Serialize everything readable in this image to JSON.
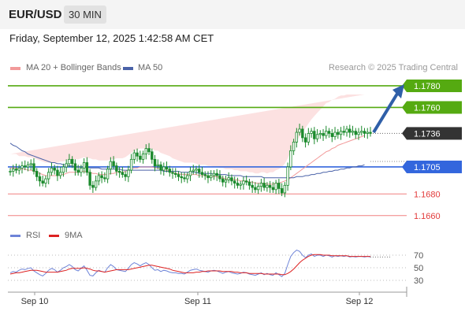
{
  "header": {
    "symbol": "EUR/USD",
    "timeframe": "30 MIN"
  },
  "timestamp": "Friday, September 12, 2025 1:42:58 AM CET",
  "legend": {
    "bollinger": "MA 20 + Bollinger Bands",
    "ma50": "MA 50",
    "credit": "Research © 2025 Trading Central"
  },
  "indicator_legend": {
    "rsi": "RSI",
    "ma9": "9MA"
  },
  "colors": {
    "bollinger_band": "#fbdcdc",
    "ma20": "#f29a9a",
    "ma50": "#4a62a8",
    "resistance": "#55aa11",
    "pivot": "#3366dd",
    "support": "#f08080",
    "arrow": "#2f5fa8",
    "last_price": "#333333",
    "candle": "#1b8a2c",
    "rsi": "#6e84d8",
    "rsi_ma": "#dd2222"
  },
  "chart_data": [
    {
      "type": "candlestick",
      "title": "EUR/USD 30 MIN",
      "x_ticks": [
        "Sep 10",
        "Sep 11",
        "Sep 12"
      ],
      "ylim": [
        1.1654,
        1.1788
      ],
      "last_price": 1.1736,
      "levels": [
        {
          "value": 1.178,
          "label": "1.1780",
          "kind": "resistance"
        },
        {
          "value": 1.176,
          "label": "1.1760",
          "kind": "resistance"
        },
        {
          "value": 1.1705,
          "label": "1.1705",
          "kind": "pivot"
        },
        {
          "value": 1.168,
          "label": "1.1680",
          "kind": "support"
        },
        {
          "value": 1.166,
          "label": "1.1660",
          "kind": "support"
        }
      ],
      "close": [
        1.1701,
        1.1703,
        1.1702,
        1.1704,
        1.1706,
        1.1705,
        1.1707,
        1.1708,
        1.1701,
        1.1696,
        1.1692,
        1.169,
        1.1694,
        1.17,
        1.1704,
        1.1702,
        1.1697,
        1.17,
        1.1705,
        1.1708,
        1.1712,
        1.1708,
        1.1702,
        1.17,
        1.1704,
        1.1709,
        1.17,
        1.1688,
        1.1686,
        1.1692,
        1.1697,
        1.1695,
        1.1694,
        1.1703,
        1.171,
        1.1706,
        1.1701,
        1.17,
        1.1698,
        1.1696,
        1.1702,
        1.1712,
        1.1718,
        1.1715,
        1.1712,
        1.1717,
        1.1722,
        1.1719,
        1.1712,
        1.1706,
        1.1707,
        1.1702,
        1.1705,
        1.1703,
        1.17,
        1.1699,
        1.1698,
        1.1696,
        1.1695,
        1.1694,
        1.1697,
        1.1701,
        1.1702,
        1.1703,
        1.17,
        1.1698,
        1.1697,
        1.1695,
        1.1697,
        1.1699,
        1.1697,
        1.1694,
        1.1691,
        1.1693,
        1.1695,
        1.1692,
        1.169,
        1.1688,
        1.1689,
        1.1692,
        1.1691,
        1.1688,
        1.1686,
        1.1684,
        1.1687,
        1.169,
        1.1686,
        1.1688,
        1.1686,
        1.1684,
        1.169,
        1.1685,
        1.1681,
        1.1688,
        1.1705,
        1.172,
        1.1728,
        1.1737,
        1.174,
        1.1732,
        1.1728,
        1.1736,
        1.1738,
        1.1731,
        1.1735,
        1.1736,
        1.1734,
        1.1738,
        1.1736,
        1.1733,
        1.1737,
        1.1735,
        1.1738,
        1.1737,
        1.174,
        1.1737,
        1.1738,
        1.1735,
        1.1737,
        1.1738,
        1.1736,
        1.1737,
        1.1736
      ],
      "ma20": [
        1.1704,
        1.1704,
        1.1704,
        1.1703,
        1.1703,
        1.1703,
        1.1702,
        1.1702,
        1.1701,
        1.17,
        1.1699,
        1.1698,
        1.1697,
        1.1697,
        1.1697,
        1.1697,
        1.1697,
        1.1698,
        1.1698,
        1.1699,
        1.17,
        1.17,
        1.17,
        1.17,
        1.1701,
        1.1701,
        1.17,
        1.17,
        1.1699,
        1.1699,
        1.1698,
        1.1698,
        1.1698,
        1.1698,
        1.1699,
        1.1699,
        1.17,
        1.17,
        1.17,
        1.1701,
        1.1702,
        1.1703,
        1.1704,
        1.1704,
        1.1705,
        1.1705,
        1.1705,
        1.1705,
        1.1705,
        1.1704,
        1.1704,
        1.1703,
        1.1702,
        1.1702,
        1.1701,
        1.17,
        1.1699,
        1.1699,
        1.1698,
        1.1698,
        1.1698,
        1.1698,
        1.1698,
        1.1698,
        1.1697,
        1.1697,
        1.1697,
        1.1696,
        1.1696,
        1.1696,
        1.1696,
        1.1695,
        1.1695,
        1.1694,
        1.1694,
        1.1694,
        1.1693,
        1.1693,
        1.1692,
        1.1692,
        1.1692,
        1.1691,
        1.1691,
        1.169,
        1.169,
        1.169,
        1.169,
        1.1689,
        1.1689,
        1.1689,
        1.169,
        1.169,
        1.1691,
        1.1692,
        1.1693,
        1.1695,
        1.1697,
        1.1699,
        1.1701,
        1.1703,
        1.1705,
        1.1707,
        1.1709,
        1.1711,
        1.1713,
        1.1715,
        1.1717,
        1.1719,
        1.172,
        1.1722,
        1.1723,
        1.1725,
        1.1726,
        1.1727,
        1.1728,
        1.1729,
        1.173,
        1.1731,
        1.1732,
        1.1733,
        1.1734
      ],
      "ma50": [
        1.1727,
        1.1725,
        1.1724,
        1.1722,
        1.172,
        1.1719,
        1.1717,
        1.1716,
        1.1715,
        1.1714,
        1.1713,
        1.1712,
        1.1711,
        1.171,
        1.1709,
        1.1709,
        1.1708,
        1.1708,
        1.1707,
        1.1707,
        1.1706,
        1.1706,
        1.1705,
        1.1705,
        1.1705,
        1.1705,
        1.1705,
        1.1704,
        1.1704,
        1.1704,
        1.1704,
        1.1703,
        1.1703,
        1.1703,
        1.1703,
        1.1703,
        1.1703,
        1.1703,
        1.1702,
        1.1702,
        1.1702,
        1.1702,
        1.1702,
        1.1702,
        1.1702,
        1.1702,
        1.1702,
        1.1702,
        1.1702,
        1.1702,
        1.1702,
        1.1702,
        1.1701,
        1.1701,
        1.1701,
        1.1701,
        1.1701,
        1.1701,
        1.17,
        1.17,
        1.17,
        1.17,
        1.17,
        1.17,
        1.1699,
        1.1699,
        1.1699,
        1.1699,
        1.1699,
        1.1698,
        1.1698,
        1.1698,
        1.1698,
        1.1698,
        1.1697,
        1.1697,
        1.1697,
        1.1697,
        1.1697,
        1.1696,
        1.1696,
        1.1696,
        1.1696,
        1.1696,
        1.1696,
        1.1696,
        1.1695,
        1.1695,
        1.1695,
        1.1695,
        1.1695,
        1.1695,
        1.1695,
        1.1695,
        1.1695,
        1.1695,
        1.1695,
        1.1696,
        1.1696,
        1.1696,
        1.1697,
        1.1697,
        1.1698,
        1.1698,
        1.1699,
        1.1699,
        1.17,
        1.17,
        1.1701,
        1.1701,
        1.1702,
        1.1702,
        1.1703,
        1.1703,
        1.1704,
        1.1704,
        1.1705,
        1.1705,
        1.1706,
        1.1706,
        1.1707
      ],
      "bollinger_width": [
        0.0013,
        0.0013,
        0.0013,
        0.0012,
        0.0012,
        0.0012,
        0.0012,
        0.0012,
        0.0012,
        0.0012,
        0.0012,
        0.0012,
        0.0012,
        0.0012,
        0.0012,
        0.0012,
        0.0012,
        0.0012,
        0.0012,
        0.0012,
        0.0012,
        0.0012,
        0.0012,
        0.0012,
        0.0012,
        0.0013,
        0.0013,
        0.0013,
        0.0013,
        0.0013,
        0.0013,
        0.0013,
        0.0013,
        0.0013,
        0.0013,
        0.0013,
        0.0013,
        0.0013,
        0.0013,
        0.0013,
        0.0014,
        0.0015,
        0.0016,
        0.0017,
        0.0017,
        0.0017,
        0.0017,
        0.0017,
        0.0017,
        0.0016,
        0.0016,
        0.0015,
        0.0015,
        0.0014,
        0.0014,
        0.0013,
        0.0013,
        0.0012,
        0.0012,
        0.0011,
        0.0011,
        0.0011,
        0.0011,
        0.001,
        0.001,
        0.001,
        0.001,
        0.001,
        0.001,
        0.0009,
        0.0009,
        0.0009,
        0.0009,
        0.0009,
        0.0009,
        0.0009,
        0.0009,
        0.0009,
        0.0009,
        0.0009,
        0.0009,
        0.0009,
        0.0009,
        0.0009,
        0.0009,
        0.001,
        0.001,
        0.001,
        0.0011,
        0.0011,
        0.0012,
        0.0013,
        0.0014,
        0.0016,
        0.002,
        0.0024,
        0.0027,
        0.003,
        0.0032,
        0.0034,
        0.0036,
        0.0038,
        0.004,
        0.0041,
        0.0042,
        0.0043,
        0.0044,
        0.0045,
        0.0045,
        0.0045,
        0.0045,
        0.0045,
        0.0045,
        0.0044,
        0.0044,
        0.0043,
        0.0042,
        0.0041,
        0.004,
        0.0039,
        0.0038,
        0.0037,
        0.0036
      ],
      "forecast_target": 1.178
    },
    {
      "type": "line",
      "title": "RSI",
      "y_ticks": [
        70,
        50,
        30
      ],
      "ylim": [
        15,
        85
      ],
      "series": [
        {
          "name": "RSI",
          "values": [
            42,
            44,
            43,
            46,
            48,
            47,
            49,
            50,
            45,
            42,
            39,
            37,
            41,
            46,
            49,
            47,
            43,
            46,
            50,
            52,
            55,
            52,
            47,
            45,
            49,
            53,
            46,
            38,
            37,
            42,
            46,
            44,
            43,
            50,
            55,
            52,
            47,
            46,
            45,
            44,
            49,
            55,
            58,
            56,
            53,
            56,
            58,
            55,
            50,
            46,
            47,
            44,
            46,
            45,
            43,
            42,
            42,
            41,
            41,
            40,
            43,
            46,
            47,
            48,
            46,
            45,
            44,
            43,
            45,
            46,
            45,
            43,
            41,
            43,
            44,
            42,
            41,
            40,
            41,
            43,
            42,
            40,
            39,
            38,
            40,
            42,
            39,
            41,
            39,
            38,
            42,
            39,
            36,
            41,
            55,
            68,
            74,
            78,
            76,
            70,
            66,
            70,
            72,
            68,
            70,
            70,
            68,
            70,
            69,
            67,
            69,
            68,
            69,
            68,
            69,
            67,
            68,
            67,
            68,
            68,
            67,
            68,
            67
          ]
        },
        {
          "name": "9MA",
          "values": [
            40,
            41,
            42,
            42,
            43,
            44,
            45,
            46,
            46,
            46,
            45,
            44,
            43,
            43,
            43,
            43,
            43,
            44,
            45,
            46,
            48,
            49,
            49,
            49,
            49,
            50,
            49,
            48,
            46,
            45,
            45,
            44,
            43,
            44,
            45,
            46,
            47,
            47,
            47,
            47,
            47,
            48,
            49,
            50,
            51,
            52,
            53,
            54,
            54,
            53,
            52,
            51,
            50,
            49,
            48,
            46,
            45,
            44,
            43,
            42,
            42,
            42,
            42,
            43,
            43,
            44,
            44,
            45,
            45,
            45,
            45,
            45,
            44,
            44,
            44,
            44,
            43,
            43,
            42,
            42,
            42,
            41,
            41,
            41,
            41,
            41,
            40,
            40,
            40,
            40,
            40,
            40,
            39,
            39,
            41,
            44,
            48,
            53,
            58,
            62,
            65,
            68,
            70,
            71,
            71,
            71,
            70,
            70,
            70,
            69,
            69,
            69,
            69,
            69,
            69,
            68,
            68,
            68,
            68,
            68,
            68,
            68,
            68
          ]
        }
      ]
    }
  ]
}
